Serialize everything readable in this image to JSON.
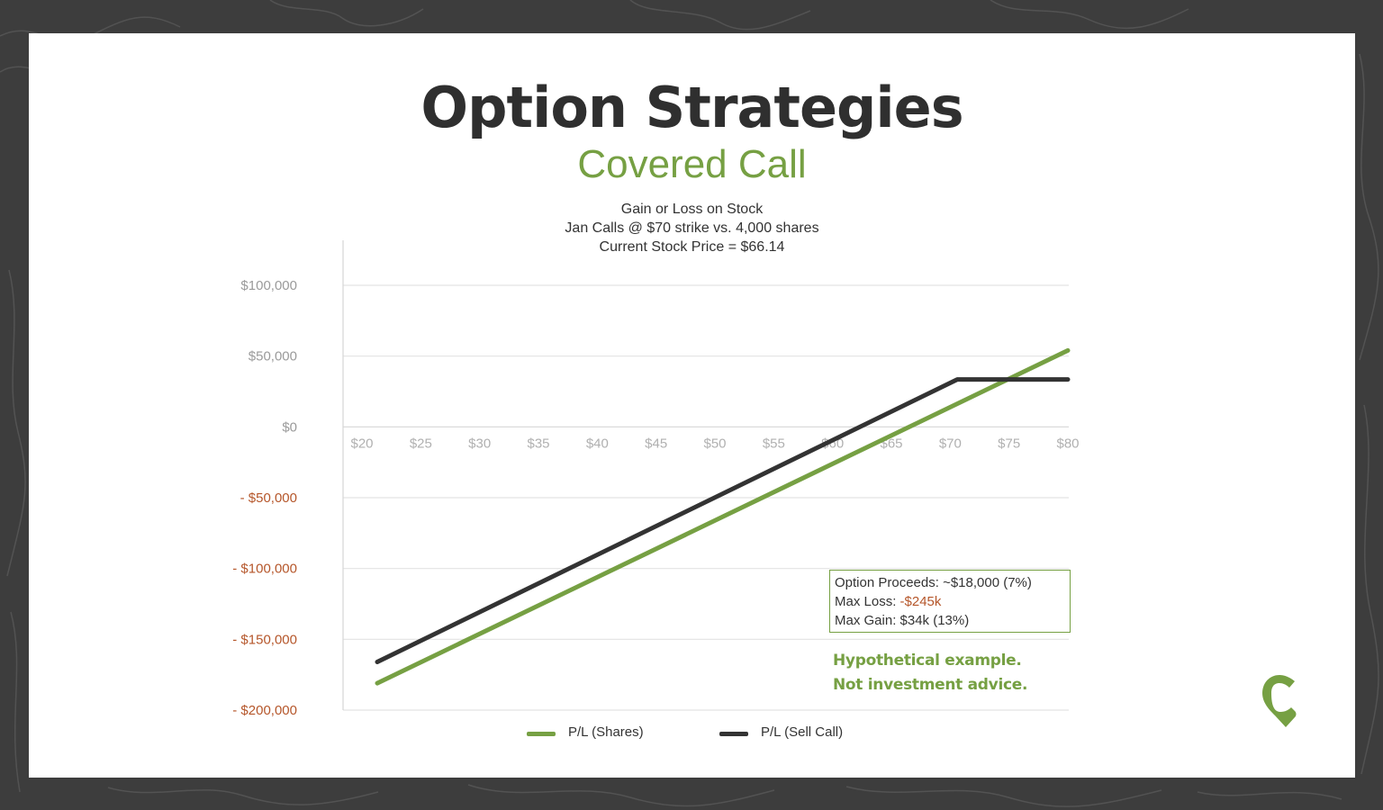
{
  "page": {
    "title": "Option Strategies",
    "subtitle": "Covered Call",
    "colors": {
      "frame": "#3d3d3d",
      "card": "#ffffff",
      "accent_green": "#76a043",
      "dark": "#333333",
      "negative_orange": "#b5562a",
      "grid": "#e3e3e3",
      "tick_gray": "#b0b0b0"
    }
  },
  "chart_data": {
    "type": "line",
    "title_lines": [
      "Gain or Loss on Stock",
      "Jan Calls @ $70 strike vs. 4,000 shares",
      "Current Stock Price = $66.14"
    ],
    "x_ticks": [
      "$20",
      "$25",
      "$30",
      "$35",
      "$40",
      "$45",
      "$50",
      "$55",
      "$60",
      "$65",
      "$70",
      "$75",
      "$80"
    ],
    "xlim": [
      20,
      80
    ],
    "y_ticks": [
      {
        "value": 100000,
        "label": "$100,000"
      },
      {
        "value": 50000,
        "label": "$50,000"
      },
      {
        "value": 0,
        "label": "$0"
      },
      {
        "value": -50000,
        "label": "- $50,000"
      },
      {
        "value": -100000,
        "label": "- $100,000"
      },
      {
        "value": -150000,
        "label": "- $150,000"
      },
      {
        "value": -200000,
        "label": "- $200,000"
      }
    ],
    "ylim": [
      -200000,
      100000
    ],
    "grid": true,
    "series": [
      {
        "name": "P/L (Shares)",
        "color": "#76a043",
        "x": [
          21.3,
          80
        ],
        "y": [
          -181000,
          54000
        ]
      },
      {
        "name": "P/L (Sell Call)",
        "color": "#333333",
        "x": [
          21.3,
          70.6,
          80
        ],
        "y": [
          -166000,
          33500,
          33500
        ]
      }
    ],
    "legend_position": "bottom-center"
  },
  "info_box": {
    "line1": "Option Proceeds: ~$18,000 (7%)",
    "line2_label": "Max Loss: ",
    "line2_value": "-$245k",
    "line3": "Max Gain: $34k (13%)"
  },
  "disclaimer": {
    "line1": "Hypothetical example.",
    "line2": "Not investment advice."
  },
  "logo": {
    "icon": "c-pin-logo"
  }
}
